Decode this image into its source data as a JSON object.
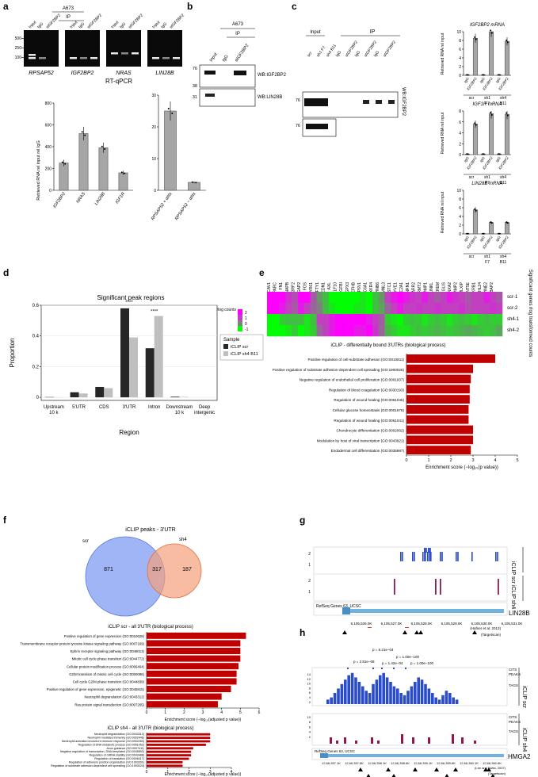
{
  "panel_labels": [
    "a",
    "b",
    "c",
    "d",
    "e",
    "f",
    "g",
    "h"
  ],
  "a": {
    "cell": "A673",
    "ip": "IP",
    "lanes": [
      "Input",
      "IgG",
      "αIGF2BP2"
    ],
    "markers": [
      "500",
      "250",
      "100"
    ],
    "gels": [
      "RPSAP52",
      "IGF2BP2",
      "NRAS",
      "LIN28B"
    ],
    "rtqpcr_title": "RT-qPCR",
    "ylabel": "Retrieved RNA rel input rel IgG"
  },
  "b": {
    "cell": "A673",
    "ip": "IP",
    "lanes": [
      "Input",
      "IgG",
      "αIGF2BP2"
    ],
    "markers": [
      "76",
      "38",
      "31"
    ],
    "wb": [
      "WB:IGF2BP2",
      "WB:LIN28B"
    ]
  },
  "c": {
    "input": "Input",
    "ip": "IP",
    "groups": [
      "scr",
      "sh1 F7",
      "sh4 B11"
    ],
    "lanes": [
      "scr",
      "sh1 F7",
      "sh4 B11",
      "IgG",
      "αIGF2BP2",
      "IgG",
      "αIGF2BP2",
      "IgG",
      "αIGF2BP2"
    ],
    "markers": [
      "76",
      "76"
    ],
    "wb": "WB:IGF2BP2",
    "ylabel": "Retrieved RNA rel input",
    "xcats": [
      "IgG",
      "IGF2BP2",
      "IgG",
      "IGF2BP2",
      "IgG",
      "IGF2BP2"
    ],
    "xgroups": [
      "scr",
      "sh1\nF7",
      "sh4\nB11"
    ]
  },
  "d": {
    "title": "Significant peak regions",
    "xlabel": "Region",
    "ylabel": "Proportion",
    "legend_title": "Sample",
    "stars": "****"
  },
  "e": {
    "rlog": "rlog counts",
    "scale": [
      "2",
      "1",
      "0",
      "-1"
    ],
    "rows": [
      "scr-1",
      "scr-2",
      "sh4-1",
      "sh4-2"
    ],
    "side": "Significant genes rlog transformed counts",
    "genes": [
      "CAV1",
      "SPARC",
      "FN1",
      "NAPB",
      "SH3RF2",
      "ARFGAP2",
      "FOS",
      "CYR61",
      "LEFTY1",
      "EDN1",
      "AXL",
      "KLF10",
      "TGFBI",
      "GPX3",
      "EFHB",
      "ATP6V1",
      "SLC6A1",
      "XKR4",
      "SERPINB6",
      "FMNL3",
      "STC1",
      "LYVE1",
      "SLC2A1",
      "NRN1",
      "ARR2",
      "FERMT2",
      "MMP1",
      "UNKL",
      "CREM",
      "GLIS",
      "ANXA2",
      "MMP2",
      "MLXIP",
      "NT5E",
      "BDKRB1",
      "KLHL24",
      "SERPINE2",
      "PBAP2"
    ],
    "go_title": "iCLIP - differentially bound 3'UTRs (biological process)",
    "xlabel": "Enrichment score (−log₁₀(p value))"
  },
  "f": {
    "venn_title": "iCLIP peaks - 3'UTR",
    "scr": "scr",
    "sh4": "sh4",
    "n_scr": "871",
    "n_both": "317",
    "n_sh4": "187",
    "go1_title": "iCLIP scr - all 3'UTR (biological process)",
    "go2_title": "iCLIP sh4 - all 3'UTR (biological process)",
    "xlabel": "Enrichment score (−log₁₀(adjusted p value))"
  },
  "g": {
    "tracks": [
      "iCLIP scr",
      "iCLIP sh4"
    ],
    "ticks": [
      "2",
      "1"
    ],
    "refseq": "RefSeq Genes 63, UCSC",
    "gene": "LIN28B",
    "coords": [
      "6,105,526.0K",
      "6,105,527.0K",
      "6,105,528.0K",
      "6,105,529.0K",
      "6,105,530.0K",
      "6,105,531.0K"
    ],
    "ref1": "(Hafner et al. 2013)",
    "ref2": "(Targetscan)"
  },
  "h": {
    "tracks": [
      "iCLIP scr",
      "iCLIP sh4"
    ],
    "ticks": [
      "14",
      "12",
      "10",
      "8",
      "6",
      "4",
      "2"
    ],
    "refseq": "RefSeq Genes 63, UCSC",
    "gene": "HMGA2",
    "rows": [
      "CITS",
      "PEAKS",
      "TAGS"
    ],
    "pvals": [
      "p = 6.21e−04",
      "p = 1.00e−100",
      "p = 2.81e−08",
      "p = 1.42e−04",
      "p = 1.00e−100"
    ],
    "coords": [
      "12,66,357.1K",
      "12,66,357.6K",
      "12,66,358.1K",
      "12,66,358.6K",
      "12,66,359.1K",
      "12,66,359.6K",
      "12,66,360.1K",
      "12,66,360.6K"
    ],
    "ref1": "(Lee and Dutta, 2007)",
    "ref2": "(Targetscan)"
  },
  "chart_data": [
    {
      "type": "bar",
      "id": "a-left",
      "categories": [
        "IGF2BP2",
        "NRAS",
        "LIN28B",
        "IGF1R"
      ],
      "values": [
        250,
        520,
        390,
        160
      ],
      "ylabel": "Retrieved RNA rel input rel IgG",
      "ylim": [
        0,
        800
      ],
      "yticks": [
        0,
        200,
        400,
        600,
        800
      ]
    },
    {
      "type": "bar",
      "id": "a-right",
      "categories": [
        "RPSAP52 + αIttx",
        "RPSAP52 − αIttx"
      ],
      "values": [
        25,
        2.5
      ],
      "ylim": [
        0,
        30
      ],
      "yticks": [
        0,
        10,
        20,
        30
      ]
    },
    {
      "type": "bar",
      "id": "c-igf2bp2",
      "title": "IGF2BP2 mRNA",
      "categories": [
        "IgG",
        "IGF2BP2",
        "IgG",
        "IGF2BP2",
        "IgG",
        "IGF2BP2"
      ],
      "values": [
        0.1,
        8.5,
        0.1,
        10,
        0.1,
        7.8
      ],
      "ylim": [
        0,
        10
      ],
      "yticks": [
        0,
        2,
        4,
        6,
        8,
        10
      ]
    },
    {
      "type": "bar",
      "id": "c-igf1r",
      "title": "IGF1R mRNA",
      "categories": [
        "IgG",
        "IGF2BP2",
        "IgG",
        "IGF2BP2",
        "IgG",
        "IGF2BP2"
      ],
      "values": [
        0.1,
        5.6,
        0.1,
        7.5,
        0.1,
        7.4
      ],
      "ylim": [
        0,
        8
      ],
      "yticks": [
        0,
        2,
        4,
        6,
        8
      ]
    },
    {
      "type": "bar",
      "id": "c-lin28b",
      "title": "LIN28B mRNA",
      "categories": [
        "IgG",
        "IGF2BP2",
        "IgG",
        "IGF2BP2",
        "IgG",
        "IGF2BP2"
      ],
      "values": [
        0.05,
        5.5,
        0.05,
        2.6,
        0.05,
        2.6
      ],
      "ylim": [
        0,
        10
      ],
      "yticks": [
        0,
        2,
        4,
        6,
        8,
        10
      ]
    },
    {
      "type": "bar",
      "id": "d",
      "title": "Significant peak regions",
      "categories": [
        "Upstream\n10 k",
        "5'UTR",
        "CDS",
        "3'UTR",
        "Intron",
        "Downstream\n10 k",
        "Deep\nintergenic"
      ],
      "series": [
        {
          "name": "iCLIP scr",
          "values": [
            0.002,
            0.033,
            0.068,
            0.58,
            0.32,
            0.004,
            0.0
          ]
        },
        {
          "name": "iCLIP sh4 B11",
          "values": [
            0.001,
            0.025,
            0.06,
            0.39,
            0.53,
            0.003,
            0.0
          ]
        }
      ],
      "ylim": [
        0,
        0.6
      ],
      "yticks": [
        0,
        0.2,
        0.4,
        0.6
      ],
      "legend": "right"
    },
    {
      "type": "bar",
      "id": "e-go",
      "orientation": "horizontal",
      "categories": [
        "Positive regulation of cell-substrate adhesion (GO:0010811)",
        "Positive regulation of substrate adhesion-dependent cell spreading (GO:1900026)",
        "Negative regulation of endothelial cell proliferation (GO:0001937)",
        "Regulation of blood coagulation (GO:0030193)",
        "Regulation of wound healing (GO:0061045)",
        "Cellular glucose homeostasis (GO:0001678)",
        "Regulation of wound healing (GO:0061041)",
        "Chondrocyte differentiation (GO:0002062)",
        "Modulation by host of viral transcription (GO:0043921)",
        "Endodermal cell differentiation (GO:0035987)"
      ],
      "values": [
        4.0,
        3.0,
        2.9,
        2.85,
        2.85,
        2.8,
        2.8,
        3.0,
        3.0,
        2.9
      ],
      "xlim": [
        0,
        5
      ],
      "xticks": [
        0,
        1,
        2,
        3,
        4,
        5
      ]
    },
    {
      "type": "bar",
      "id": "f-go1",
      "orientation": "horizontal",
      "categories": [
        "Positive regulation of gene expression (GO:0010628)",
        "Transmembrane receptor protein tyrosine kinase signaling pathway (GO:0007169)",
        "Ephrin receptor signaling pathway (GO:0048013)",
        "Mitotic cell cycle phase transition (GO:0044772)",
        "Cellular protein modification process (GO:0006464)",
        "G2/M transition of mitotic cell cycle (GO:0000086)",
        "Cell cycle G2/M phase transition (GO:0044839)",
        "Positive regulation of gene expression, epigenetic (GO:0045815)",
        "Neutrophil degranulation (GO:0043312)",
        "Ras protein signal transduction (GO:0007265)"
      ],
      "values": [
        5.3,
        5.0,
        5.0,
        5.0,
        4.9,
        4.8,
        4.8,
        4.5,
        4.0,
        3.8
      ],
      "xlim": [
        0,
        6
      ],
      "xticks": [
        0,
        1,
        2,
        3,
        4,
        5,
        6
      ]
    },
    {
      "type": "bar",
      "id": "f-go2",
      "orientation": "horizontal",
      "categories": [
        "Neutrophil degranulation (GO:0043312)",
        "Neutrophil mediated immunity (GO:0002446)",
        "Neutrophil activation involved in immune response (GO:0002283)",
        "Regulation of DNA metabolic process (GO:0051052)",
        "Axon guidance (GO:0007411)",
        "Negative regulation of transcription, DNA-templated (GO:0045892)",
        "Regulation of mRNA stability (GO:0043488)",
        "Regulation of translation (GO:0006417)",
        "Regulation of adherens junction organization (GO:1903391)",
        "Regulation of substrate adhesion-dependent cell spreading (GO:1900024)"
      ],
      "values": [
        3.0,
        3.0,
        3.0,
        2.8,
        2.2,
        2.1,
        2.1,
        2.0,
        1.7,
        1.7
      ],
      "xlim": [
        0,
        4
      ],
      "xticks": [
        0,
        1,
        2,
        3,
        4
      ]
    }
  ]
}
